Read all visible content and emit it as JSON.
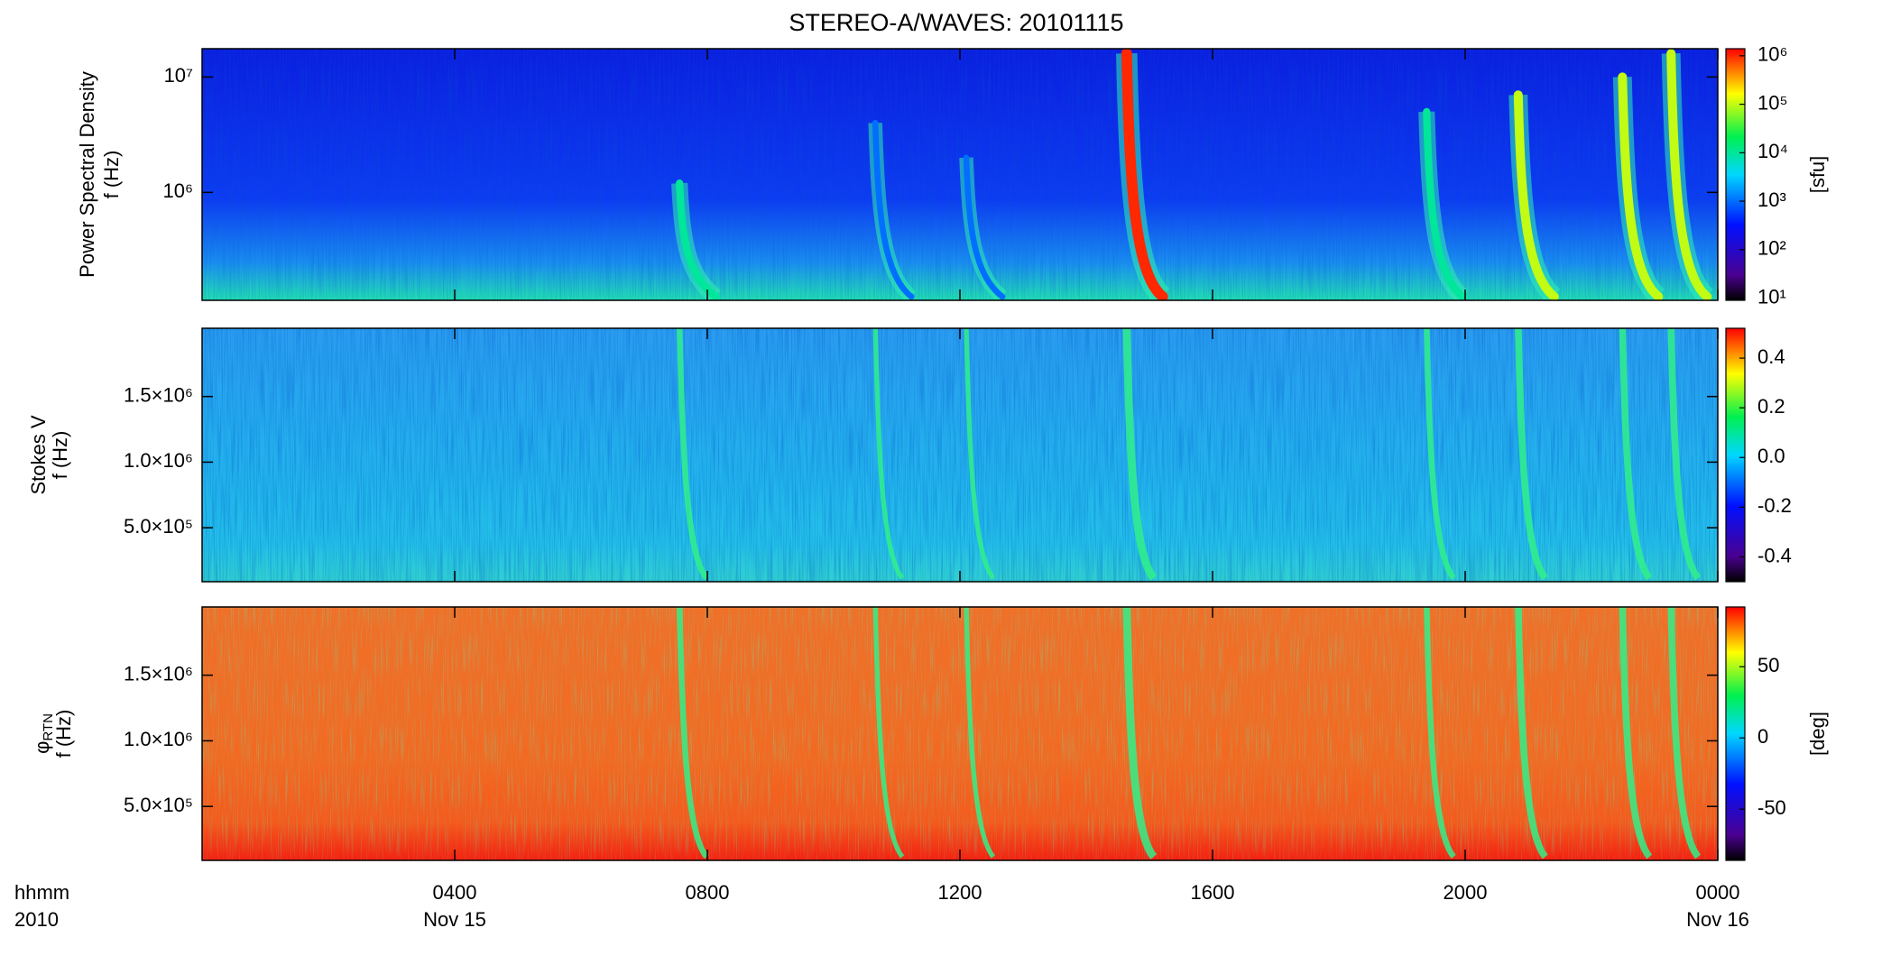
{
  "chart_data": [
    {
      "type": "spectrogram",
      "title": "STEREO-A/WAVES: 20101115",
      "ylabel": "Power Spectral Density",
      "ylabel_unit": "f (Hz)",
      "ylog": true,
      "ylim": [
        116000,
        17600000
      ],
      "yticks": [
        {
          "value": 1000000,
          "label": "10⁶"
        },
        {
          "value": 10000000,
          "label": "10⁷"
        }
      ],
      "clog": true,
      "clim": [
        9,
        1400000
      ],
      "cticks": [
        {
          "value": 10,
          "label": "10¹"
        },
        {
          "value": 100,
          "label": "10²"
        },
        {
          "value": 1000,
          "label": "10³"
        },
        {
          "value": 10000,
          "label": "10⁴"
        },
        {
          "value": 100000,
          "label": "10⁵"
        },
        {
          "value": 1000000,
          "label": "10⁶"
        }
      ],
      "clabel": "[sfu]",
      "background": [
        "#0b1ee0",
        "#0d3cf2",
        "#1a8ef0",
        "#22e0b0"
      ],
      "events": [
        {
          "time": 7.56,
          "fmax": 1200000,
          "peak": 10000
        },
        {
          "time": 10.66,
          "fmax": 4000000,
          "peak": 1000
        },
        {
          "time": 12.1,
          "fmax": 2000000,
          "peak": 1000
        },
        {
          "time": 14.64,
          "fmax": 16000000,
          "peak": 1000000
        },
        {
          "time": 19.39,
          "fmax": 5000000,
          "peak": 10000
        },
        {
          "time": 20.84,
          "fmax": 7000000,
          "peak": 100000
        },
        {
          "time": 22.49,
          "fmax": 10000000,
          "peak": 100000
        },
        {
          "time": 23.26,
          "fmax": 16000000,
          "peak": 100000
        }
      ]
    },
    {
      "type": "spectrogram",
      "ylabel": "Stokes V",
      "ylabel_unit": "f (Hz)",
      "ylog": false,
      "ylim": [
        89000,
        2020000
      ],
      "yticks": [
        {
          "value": 500000,
          "label": "5.0×10⁵"
        },
        {
          "value": 1000000,
          "label": "1.0×10⁶"
        },
        {
          "value": 1500000,
          "label": "1.5×10⁶"
        }
      ],
      "clog": false,
      "clim": [
        -0.5,
        0.52
      ],
      "cticks": [
        0.4,
        0.2,
        {
          "value": 0,
          "label": "0.0"
        },
        -0.2,
        -0.4
      ],
      "background": [
        "#2a9cf0",
        "#22b4ec",
        "#24c0e8",
        "#30d0d0"
      ]
    },
    {
      "type": "spectrogram",
      "ylabel": "φ",
      "ylabel_sub": "RTN",
      "ylabel_unit": "f (Hz)",
      "ylog": false,
      "ylim": [
        89000,
        2020000
      ],
      "yticks": [
        {
          "value": 500000,
          "label": "5.0×10⁵"
        },
        {
          "value": 1000000,
          "label": "1.0×10⁶"
        },
        {
          "value": 1500000,
          "label": "1.5×10⁶"
        }
      ],
      "clog": false,
      "clim": [
        -86,
        92
      ],
      "cticks": [
        50,
        0,
        -50
      ],
      "clabel": "[deg]",
      "background": [
        "#f07028",
        "#f26a22",
        "#f45a1c",
        "#f42010"
      ],
      "xlim": [
        0,
        24
      ],
      "xticks": [
        {
          "value": 4,
          "label": "0400"
        },
        {
          "value": 8,
          "label": "0800"
        },
        {
          "value": 12,
          "label": "1200"
        },
        {
          "value": 16,
          "label": "1600"
        },
        {
          "value": 20,
          "label": "2000"
        },
        {
          "value": 24,
          "label": "0000"
        }
      ],
      "xdates": [
        {
          "value": 4,
          "label": "Nov 15"
        },
        {
          "value": 24,
          "label": "Nov 16"
        }
      ],
      "xlabel": [
        "hhmm",
        "2010"
      ]
    }
  ]
}
